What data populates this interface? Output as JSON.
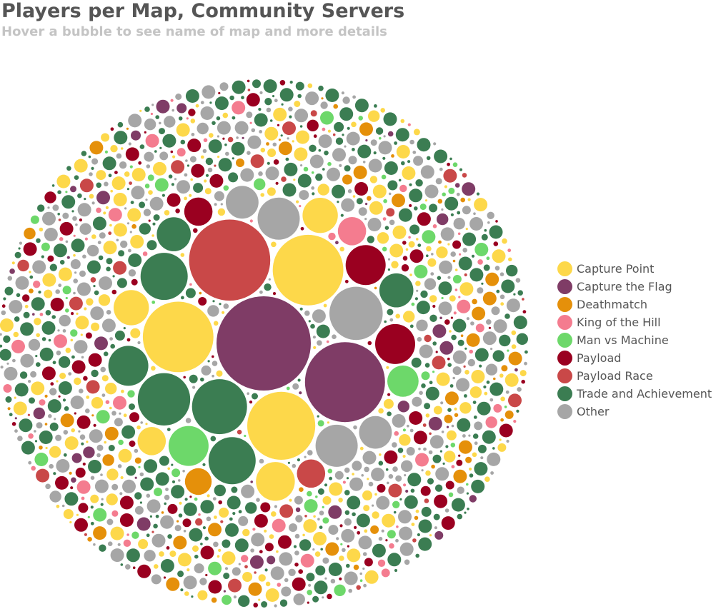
{
  "title": "Players per Map, Community Servers",
  "subtitle": "Hover a bubble to see name of map and more details",
  "legend": [
    {
      "label": "Capture Point",
      "color": "#fdd84a"
    },
    {
      "label": "Capture the Flag",
      "color": "#7f3c66"
    },
    {
      "label": "Deathmatch",
      "color": "#e5900a"
    },
    {
      "label": "King of the Hill",
      "color": "#f47c8f"
    },
    {
      "label": "Man vs Machine",
      "color": "#6dd86a"
    },
    {
      "label": "Payload",
      "color": "#9a0020"
    },
    {
      "label": "Payload Race",
      "color": "#c94848"
    },
    {
      "label": "Trade and Achievement",
      "color": "#3b7d52"
    },
    {
      "label": "Other",
      "color": "#a6a6a6"
    }
  ],
  "chart_data": {
    "type": "bubble-pack",
    "title": "Players per Map, Community Servers",
    "subtitle": "Hover a bubble to see name of map and more details",
    "legend_position": "right",
    "series": [
      {
        "name": "Capture Point",
        "color": "#fdd84a"
      },
      {
        "name": "Capture the Flag",
        "color": "#7f3c66"
      },
      {
        "name": "Deathmatch",
        "color": "#e5900a"
      },
      {
        "name": "King of the Hill",
        "color": "#f47c8f"
      },
      {
        "name": "Man vs Machine",
        "color": "#6dd86a"
      },
      {
        "name": "Payload",
        "color": "#9a0020"
      },
      {
        "name": "Payload Race",
        "color": "#c94848"
      },
      {
        "name": "Trade and Achievement",
        "color": "#3b7d52"
      },
      {
        "name": "Other",
        "color": "#a6a6a6"
      }
    ],
    "bubbles": [
      {
        "cat": 1,
        "v": 100
      },
      {
        "cat": 6,
        "v": 74
      },
      {
        "cat": 1,
        "v": 72
      },
      {
        "cat": 0,
        "v": 56
      },
      {
        "cat": 0,
        "v": 56
      },
      {
        "cat": 0,
        "v": 52
      },
      {
        "cat": 7,
        "v": 34
      },
      {
        "cat": 8,
        "v": 32
      },
      {
        "cat": 7,
        "v": 31
      },
      {
        "cat": 7,
        "v": 25
      },
      {
        "cat": 7,
        "v": 25
      },
      {
        "cat": 8,
        "v": 20
      },
      {
        "cat": 8,
        "v": 20
      },
      {
        "cat": 4,
        "v": 18
      },
      {
        "cat": 5,
        "v": 18
      },
      {
        "cat": 5,
        "v": 18
      },
      {
        "cat": 7,
        "v": 18
      },
      {
        "cat": 0,
        "v": 17
      },
      {
        "cat": 0,
        "v": 14
      },
      {
        "cat": 0,
        "v": 14
      },
      {
        "cat": 7,
        "v": 13
      },
      {
        "cat": 7,
        "v": 13
      },
      {
        "cat": 8,
        "v": 12
      },
      {
        "cat": 8,
        "v": 12
      },
      {
        "cat": 4,
        "v": 11
      },
      {
        "cat": 6,
        "v": 9
      },
      {
        "cat": 2,
        "v": 8
      },
      {
        "cat": 3,
        "v": 9
      },
      {
        "cat": 5,
        "v": 9
      },
      {
        "cat": 0,
        "v": 9
      }
    ]
  }
}
